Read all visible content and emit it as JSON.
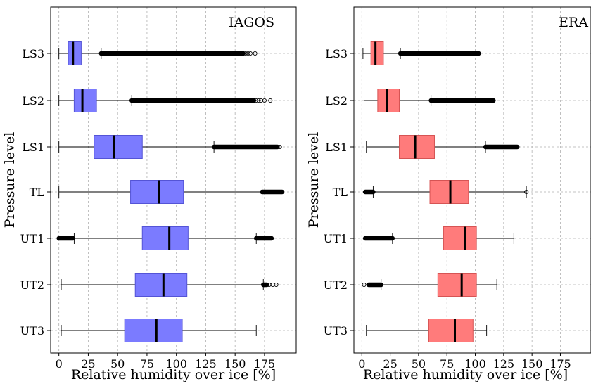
{
  "chart_data": [
    {
      "type": "box",
      "title": "IAGOS",
      "xlabel": "Relative humidity over ice [%]",
      "ylabel": "Pressure level",
      "xlim": [
        -7,
        202
      ],
      "xticks": [
        0,
        25,
        50,
        75,
        100,
        125,
        150,
        175
      ],
      "grid": true,
      "box_color": "#7b7bff",
      "box_edge": "#5454d6",
      "categories": [
        "LS3",
        "LS2",
        "LS1",
        "TL",
        "UT1",
        "UT2",
        "UT3"
      ],
      "boxes": [
        {
          "level": "LS3",
          "whisker_low": 0,
          "q1": 8,
          "median": 12,
          "q3": 19,
          "whisker_high": 36,
          "outliers_low": [],
          "outliers_high_range": [
            36,
            157
          ],
          "outliers_high_points": [
            159,
            161,
            163,
            167
          ]
        },
        {
          "level": "LS2",
          "whisker_low": 0,
          "q1": 13,
          "median": 20,
          "q3": 32,
          "whisker_high": 62,
          "outliers_low": [],
          "outliers_high_range": [
            62,
            166
          ],
          "outliers_high_points": [
            168,
            170,
            172,
            175,
            180
          ]
        },
        {
          "level": "LS1",
          "whisker_low": 0,
          "q1": 30,
          "median": 47,
          "q3": 71,
          "whisker_high": 132,
          "outliers_low": [],
          "outliers_high_range": [
            132,
            186
          ],
          "outliers_high_points": [
            188
          ]
        },
        {
          "level": "TL",
          "whisker_low": 0,
          "q1": 61,
          "median": 85,
          "q3": 106,
          "whisker_high": 173,
          "outliers_low": [],
          "outliers_high_range": [
            173,
            190
          ],
          "outliers_high_points": []
        },
        {
          "level": "UT1",
          "whisker_low": 13,
          "q1": 71,
          "median": 94,
          "q3": 110,
          "whisker_high": 168,
          "outliers_low_range": [
            0,
            12
          ],
          "outliers_high_range": [
            168,
            181
          ],
          "outliers_high_points": []
        },
        {
          "level": "UT2",
          "whisker_low": 2,
          "q1": 65,
          "median": 89,
          "q3": 109,
          "whisker_high": 174,
          "outliers_low": [],
          "outliers_high_range": [
            174,
            177
          ],
          "outliers_high_points": [
            179,
            182,
            185
          ]
        },
        {
          "level": "UT3",
          "whisker_low": 2,
          "q1": 56,
          "median": 83,
          "q3": 105,
          "whisker_high": 168,
          "outliers_low": [],
          "outliers_high_range": [],
          "outliers_high_points": []
        }
      ]
    },
    {
      "type": "box",
      "title": "ERA",
      "xlabel": "Relative humidity over ice [%]",
      "ylabel": "Pressure level",
      "xlim": [
        -7,
        202
      ],
      "xticks": [
        0,
        25,
        50,
        75,
        100,
        125,
        150,
        175
      ],
      "grid": true,
      "box_color": "#ff7b7b",
      "box_edge": "#d65454",
      "categories": [
        "LS3",
        "LS2",
        "LS1",
        "TL",
        "UT1",
        "UT2",
        "UT3"
      ],
      "boxes": [
        {
          "level": "LS3",
          "whisker_low": 1,
          "q1": 8,
          "median": 12,
          "q3": 19,
          "whisker_high": 34,
          "outliers_low": [],
          "outliers_high_range": [
            34,
            103
          ],
          "outliers_high_points": []
        },
        {
          "level": "LS2",
          "whisker_low": 2,
          "q1": 14,
          "median": 22,
          "q3": 33,
          "whisker_high": 61,
          "outliers_low": [],
          "outliers_high_range": [
            61,
            116
          ],
          "outliers_high_points": []
        },
        {
          "level": "LS1",
          "whisker_low": 4,
          "q1": 33,
          "median": 47,
          "q3": 64,
          "whisker_high": 109,
          "outliers_low": [],
          "outliers_high_range": [
            109,
            137
          ],
          "outliers_high_points": []
        },
        {
          "level": "TL",
          "whisker_low": 10,
          "q1": 60,
          "median": 78,
          "q3": 94,
          "whisker_high": 145,
          "outliers_low_range": [
            3,
            10
          ],
          "outliers_high_range": [],
          "outliers_high_points": [
            145
          ]
        },
        {
          "level": "UT1",
          "whisker_low": 27,
          "q1": 72,
          "median": 91,
          "q3": 101,
          "whisker_high": 134,
          "outliers_low_range": [
            3,
            27
          ],
          "outliers_high_range": [],
          "outliers_high_points": []
        },
        {
          "level": "UT2",
          "whisker_low": 17,
          "q1": 67,
          "median": 88,
          "q3": 101,
          "whisker_high": 119,
          "outliers_low_range": [
            6,
            17
          ],
          "outliers_low_points": [
            2
          ],
          "outliers_high_range": [],
          "outliers_high_points": []
        },
        {
          "level": "UT3",
          "whisker_low": 4,
          "q1": 59,
          "median": 82,
          "q3": 98,
          "whisker_high": 110,
          "outliers_low": [],
          "outliers_high_range": [],
          "outliers_high_points": []
        }
      ]
    }
  ]
}
